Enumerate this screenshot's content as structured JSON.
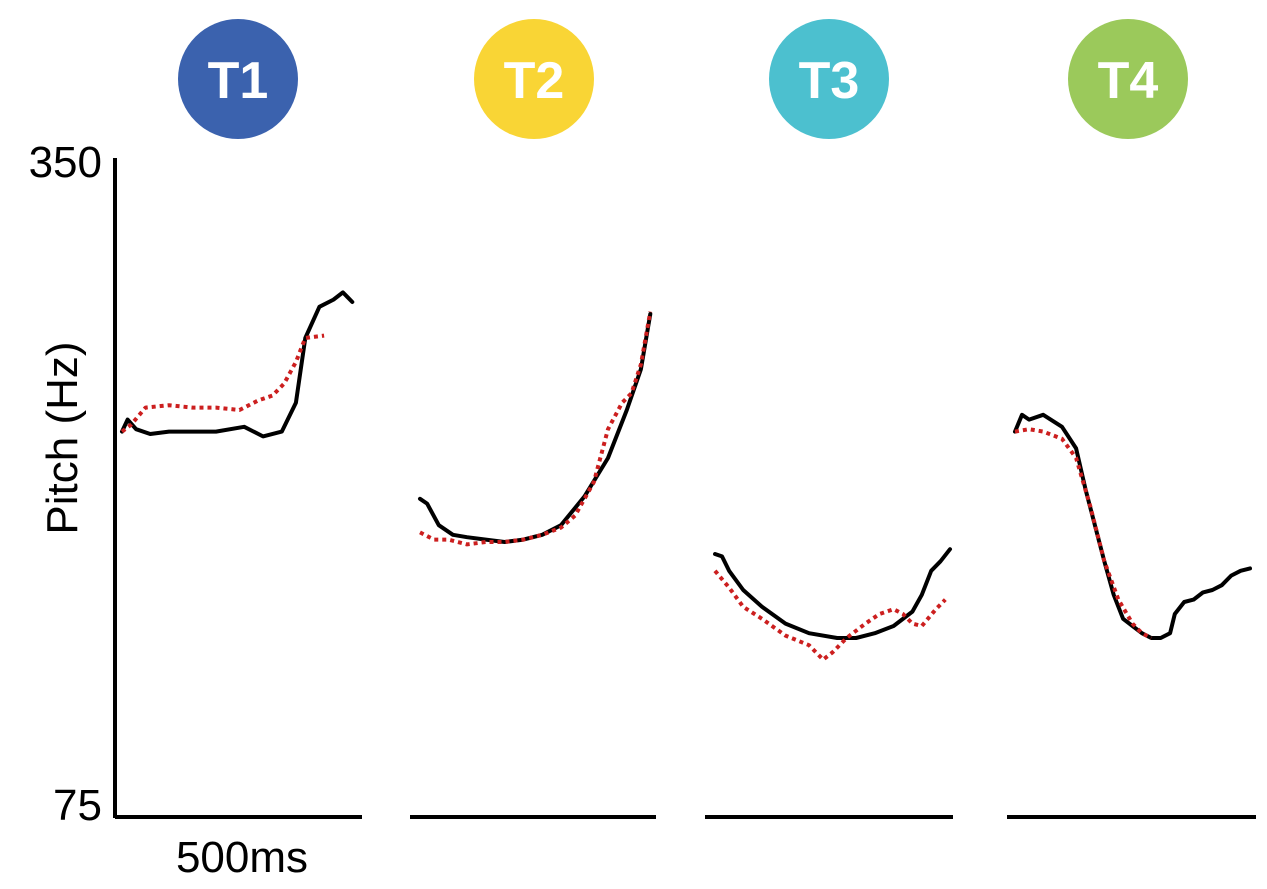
{
  "chart_data": {
    "type": "line",
    "ylabel": "Pitch (Hz)",
    "yticks": [
      "350",
      "75"
    ],
    "ylim": [
      75,
      350
    ],
    "time_scale_label": "500ms",
    "x_unit": "ms",
    "panels": [
      {
        "label": "T1",
        "color": "#3B62AE",
        "series": [
          {
            "style": "solid",
            "color": "#000000",
            "x": [
              0,
              12,
              30,
              60,
              100,
              150,
              200,
              260,
              300,
              340,
              370,
              390,
              420,
              450,
              470,
              480,
              490
            ],
            "y": [
              236,
              241,
              237,
              235,
              236,
              236,
              236,
              238,
              234,
              236,
              248,
              275,
              288,
              291,
              294,
              292,
              290
            ]
          },
          {
            "style": "dotted",
            "color": "#CC1F1F",
            "x": [
              0,
              20,
              50,
              100,
              150,
              200,
              250,
              290,
              320,
              345,
              370,
              390,
              430
            ],
            "y": [
              236,
              239,
              246,
              247,
              246,
              246,
              245,
              249,
              251,
              256,
              265,
              275,
              276
            ]
          }
        ]
      },
      {
        "label": "T2",
        "color": "#F9D535",
        "series": [
          {
            "style": "solid",
            "color": "#000000",
            "x": [
              0,
              15,
              40,
              70,
              100,
              140,
              180,
              220,
              260,
              300,
              350,
              400,
              440,
              470,
              490
            ],
            "y": [
              208,
              206,
              197,
              193,
              192,
              191,
              190,
              191,
              193,
              197,
              209,
              225,
              245,
              262,
              285
            ]
          },
          {
            "style": "dotted",
            "color": "#CC1F1F",
            "x": [
              0,
              30,
              60,
              100,
              140,
              180,
              220,
              260,
              300,
              330,
              370,
              400,
              430,
              450,
              470,
              490
            ],
            "y": [
              194,
              191,
              191,
              189,
              190,
              190,
              191,
              193,
              196,
              201,
              215,
              237,
              248,
              252,
              264,
              286
            ]
          }
        ]
      },
      {
        "label": "T3",
        "color": "#4CC0CF",
        "series": [
          {
            "style": "solid",
            "color": "#000000",
            "x": [
              0,
              15,
              30,
              60,
              100,
              150,
              200,
              260,
              300,
              340,
              380,
              420,
              440,
              460,
              480,
              500
            ],
            "y": [
              185,
              184,
              178,
              170,
              163,
              156,
              152,
              150,
              150,
              152,
              155,
              161,
              168,
              178,
              182,
              187
            ]
          },
          {
            "style": "dotted",
            "color": "#CC1F1F",
            "x": [
              0,
              30,
              60,
              100,
              150,
              200,
              230,
              250,
              280,
              320,
              350,
              380,
              400,
              420,
              440,
              470,
              490
            ],
            "y": [
              178,
              171,
              163,
              158,
              151,
              147,
              141,
              144,
              150,
              156,
              160,
              162,
              160,
              156,
              155,
              162,
              166
            ]
          }
        ]
      },
      {
        "label": "T4",
        "color": "#9BC95B",
        "series": [
          {
            "style": "solid",
            "color": "#000000",
            "x": [
              0,
              15,
              30,
              60,
              100,
              130,
              150,
              170,
              190,
              210,
              230,
              250,
              270,
              290,
              310,
              330,
              340,
              360,
              380,
              400,
              420,
              440,
              460,
              480,
              500
            ],
            "y": [
              236,
              243,
              241,
              243,
              238,
              229,
              212,
              197,
              182,
              168,
              158,
              155,
              152,
              150,
              150,
              152,
              160,
              165,
              166,
              169,
              170,
              172,
              176,
              178,
              179
            ]
          },
          {
            "style": "dotted",
            "color": "#CC1F1F",
            "x": [
              0,
              30,
              60,
              100,
              130,
              160,
              190,
              220,
              250,
              270,
              290
            ],
            "y": [
              236,
              237,
              236,
              233,
              225,
              205,
              182,
              166,
              156,
              152,
              150
            ]
          }
        ]
      }
    ]
  }
}
